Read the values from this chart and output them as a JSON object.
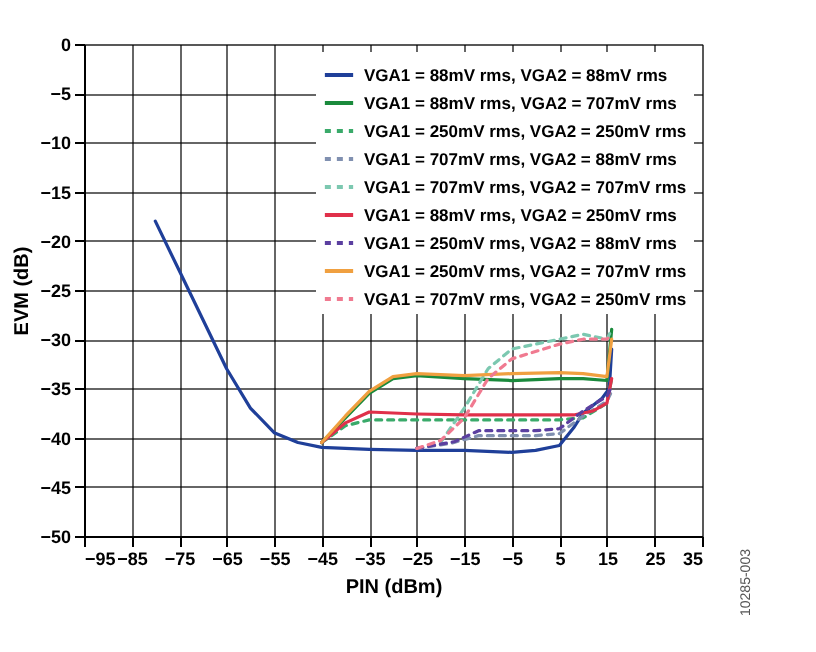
{
  "chart_data": {
    "type": "line",
    "xlabel": "PIN (dBm)",
    "ylabel": "EVM (dB)",
    "xlim": [
      -95,
      35
    ],
    "ylim": [
      -50,
      0
    ],
    "xticks": [
      -95,
      -85,
      -75,
      -65,
      -55,
      -45,
      -35,
      -25,
      -15,
      -5,
      5,
      15,
      25,
      35
    ],
    "yticks": [
      -50,
      -45,
      -40,
      -35,
      -30,
      -25,
      -20,
      -15,
      -10,
      -5,
      0
    ],
    "grid": true,
    "legend": "top right",
    "marker": "none",
    "annotations": [
      "10285-003"
    ],
    "series": [
      {
        "name": "VGA1 = 88mV rms, VGA2 = 88mV rms",
        "color": "#1f3f99",
        "line_style": "solid",
        "x": [
          -80,
          -75,
          -70,
          -65,
          -60,
          -55,
          -50,
          -45,
          -35,
          -25,
          -15,
          -5,
          0,
          5,
          8,
          10,
          14,
          15.5,
          16
        ],
        "values": [
          -18,
          -23,
          -28,
          -33,
          -37,
          -39.5,
          -40.5,
          -41,
          -41.2,
          -41.3,
          -41.3,
          -41.5,
          -41.3,
          -40.8,
          -39,
          -37.5,
          -36,
          -35,
          -31
        ]
      },
      {
        "name": "VGA1 = 88mV rms, VGA2 = 707mV rms",
        "color": "#1a8a3c",
        "line_style": "solid",
        "x": [
          -45,
          -40,
          -35,
          -30,
          -25,
          -15,
          -5,
          5,
          10,
          15,
          16
        ],
        "values": [
          -40.5,
          -38,
          -35.5,
          -34,
          -33.7,
          -34,
          -34.2,
          -34,
          -34,
          -34.2,
          -29
        ]
      },
      {
        "name": "VGA1 = 250mV rms, VGA2 = 250mV rms",
        "color": "#3aaa6a",
        "line_style": "dashed",
        "x": [
          -45,
          -40,
          -35,
          -25,
          -15,
          -5,
          5,
          10,
          15,
          16
        ],
        "values": [
          -40.5,
          -38.8,
          -38.2,
          -38.2,
          -38.2,
          -38.2,
          -38.2,
          -38,
          -36.5,
          -34
        ]
      },
      {
        "name": "VGA1 = 707mV rms, VGA2 = 88mV rms",
        "color": "#8090b0",
        "line_style": "dashed",
        "x": [
          -25,
          -18,
          -12,
          0,
          5,
          10,
          15,
          16
        ],
        "values": [
          -41.1,
          -40.6,
          -39.8,
          -39.8,
          -39.6,
          -37.8,
          -36.3,
          -35.3
        ]
      },
      {
        "name": "VGA1 = 707mV rms, VGA2 = 707mV rms",
        "color": "#7cc8b0",
        "line_style": "dashed",
        "x": [
          -20,
          -15,
          -10,
          -5,
          5,
          10,
          15,
          16
        ],
        "values": [
          -40.5,
          -37,
          -33,
          -31,
          -30,
          -29.5,
          -30,
          -29
        ]
      },
      {
        "name": "VGA1 = 88mV rms, VGA2 = 250mV rms",
        "color": "#e0304a",
        "line_style": "solid",
        "x": [
          -45,
          -40,
          -35,
          -25,
          -15,
          0,
          8,
          12,
          15,
          16
        ],
        "values": [
          -40.5,
          -38.5,
          -37.4,
          -37.6,
          -37.7,
          -37.7,
          -37.7,
          -37.3,
          -36.5,
          -34
        ]
      },
      {
        "name": "VGA1 = 250mV rms, VGA2 = 88mV rms",
        "color": "#5b3fa0",
        "line_style": "dashed",
        "x": [
          -25,
          -17,
          -12,
          0,
          5,
          10,
          15,
          16
        ],
        "values": [
          -41.1,
          -40.4,
          -39.3,
          -39.3,
          -39.1,
          -37.3,
          -35.8,
          -34.8
        ]
      },
      {
        "name": "VGA1 = 250mV rms, VGA2 = 707mV rms",
        "color": "#f0a040",
        "line_style": "solid",
        "x": [
          -45,
          -40,
          -35,
          -30,
          -25,
          -15,
          -5,
          5,
          10,
          15,
          16
        ],
        "values": [
          -40.5,
          -37.8,
          -35.3,
          -33.8,
          -33.5,
          -33.7,
          -33.5,
          -33.4,
          -33.5,
          -33.8,
          -30
        ]
      },
      {
        "name": "VGA1 = 707mV rms, VGA2 = 250mV rms",
        "color": "#f07a90",
        "line_style": "dashed",
        "x": [
          -25,
          -20,
          -15,
          -10,
          -5,
          5,
          10,
          15,
          16
        ],
        "values": [
          -41.1,
          -40.3,
          -38,
          -34,
          -32,
          -30.5,
          -30,
          -30,
          -29.5
        ]
      }
    ]
  }
}
